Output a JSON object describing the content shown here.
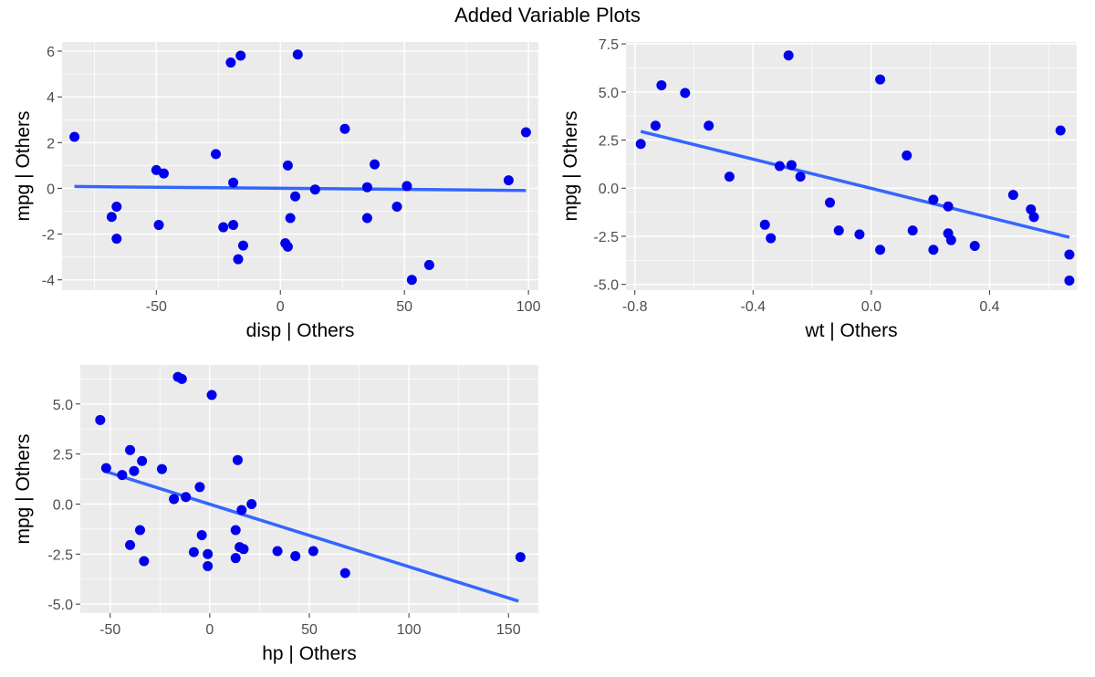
{
  "title": "Added Variable Plots",
  "colors": {
    "panel_bg": "#EBEBEB",
    "grid": "#FFFFFF",
    "point": "#0000EE",
    "line": "#3366FF",
    "tick_text": "#4D4D4D"
  },
  "chart_data": [
    {
      "type": "scatter",
      "xlabel": "disp  | Others",
      "ylabel": "mpg  | Others",
      "xlim": [
        -88,
        104
      ],
      "ylim": [
        -4.45,
        6.4
      ],
      "xticks": [
        -50,
        0,
        50,
        100
      ],
      "xtick_labels": [
        "-50",
        "0",
        "50",
        "100"
      ],
      "yticks": [
        -4,
        -2,
        0,
        2,
        4,
        6
      ],
      "ytick_labels": [
        "-4",
        "-2",
        "0",
        "2",
        "4",
        "6"
      ],
      "fit_line": {
        "x": [
          -83,
          99
        ],
        "y": [
          0.08,
          -0.09
        ]
      },
      "points": [
        [
          -83,
          2.25
        ],
        [
          -68,
          -1.25
        ],
        [
          -66,
          -0.8
        ],
        [
          -66,
          -2.2
        ],
        [
          -50,
          0.8
        ],
        [
          -49,
          -1.6
        ],
        [
          -47,
          0.65
        ],
        [
          -26,
          1.5
        ],
        [
          -23,
          -1.7
        ],
        [
          -20,
          5.5
        ],
        [
          -19,
          0.25
        ],
        [
          -19,
          -1.6
        ],
        [
          -17,
          -3.1
        ],
        [
          -16,
          5.8
        ],
        [
          -15,
          -2.5
        ],
        [
          2,
          -2.4
        ],
        [
          3,
          -2.55
        ],
        [
          3,
          1.0
        ],
        [
          4,
          -1.3
        ],
        [
          6,
          -0.35
        ],
        [
          7,
          5.85
        ],
        [
          14,
          -0.05
        ],
        [
          26,
          2.6
        ],
        [
          35,
          -1.3
        ],
        [
          35,
          0.05
        ],
        [
          38,
          1.05
        ],
        [
          47,
          -0.8
        ],
        [
          51,
          0.1
        ],
        [
          53,
          -4.0
        ],
        [
          60,
          -3.35
        ],
        [
          92,
          0.35
        ],
        [
          99,
          2.45
        ]
      ]
    },
    {
      "type": "scatter",
      "xlabel": "wt  | Others",
      "ylabel": "mpg  | Others",
      "xlim": [
        -0.83,
        0.695
      ],
      "ylim": [
        -5.3,
        7.6
      ],
      "xticks": [
        -0.8,
        -0.4,
        0.0,
        0.4
      ],
      "xtick_labels": [
        "-0.8",
        "-0.4",
        "0.0",
        "0.4"
      ],
      "yticks": [
        -5.0,
        -2.5,
        0.0,
        2.5,
        5.0,
        7.5
      ],
      "ytick_labels": [
        "-5.0",
        "-2.5",
        "0.0",
        "2.5",
        "5.0",
        "7.5"
      ],
      "fit_line": {
        "x": [
          -0.78,
          0.67
        ],
        "y": [
          2.95,
          -2.55
        ]
      },
      "points": [
        [
          -0.78,
          2.3
        ],
        [
          -0.73,
          3.25
        ],
        [
          -0.71,
          5.35
        ],
        [
          -0.63,
          4.95
        ],
        [
          -0.55,
          3.25
        ],
        [
          -0.48,
          0.6
        ],
        [
          -0.36,
          -1.9
        ],
        [
          -0.34,
          -2.6
        ],
        [
          -0.31,
          1.15
        ],
        [
          -0.28,
          6.9
        ],
        [
          -0.27,
          1.2
        ],
        [
          -0.24,
          0.6
        ],
        [
          -0.14,
          -0.75
        ],
        [
          -0.11,
          -2.2
        ],
        [
          -0.04,
          -2.4
        ],
        [
          0.03,
          -3.2
        ],
        [
          0.03,
          5.65
        ],
        [
          0.12,
          1.7
        ],
        [
          0.14,
          -2.2
        ],
        [
          0.21,
          -3.2
        ],
        [
          0.21,
          -0.6
        ],
        [
          0.26,
          -2.35
        ],
        [
          0.26,
          -0.95
        ],
        [
          0.27,
          -2.7
        ],
        [
          0.35,
          -3.0
        ],
        [
          0.48,
          -0.35
        ],
        [
          0.54,
          -1.1
        ],
        [
          0.55,
          -1.5
        ],
        [
          0.64,
          3.0
        ],
        [
          0.67,
          -3.45
        ],
        [
          0.67,
          -4.8
        ]
      ]
    },
    {
      "type": "scatter",
      "xlabel": "hp  | Others",
      "ylabel": "mpg  | Others",
      "xlim": [
        -65,
        165
      ],
      "ylim": [
        -5.45,
        6.95
      ],
      "xticks": [
        -50,
        0,
        50,
        100,
        150
      ],
      "xtick_labels": [
        "-50",
        "0",
        "50",
        "100",
        "150"
      ],
      "yticks": [
        -5.0,
        -2.5,
        0.0,
        2.5,
        5.0
      ],
      "ytick_labels": [
        "-5.0",
        "-2.5",
        "0.0",
        "2.5",
        "5.0"
      ],
      "fit_line": {
        "x": [
          -53,
          155
        ],
        "y": [
          1.65,
          -4.85
        ]
      },
      "points": [
        [
          -55,
          4.2
        ],
        [
          -52,
          1.8
        ],
        [
          -44,
          1.45
        ],
        [
          -40,
          2.7
        ],
        [
          -40,
          -2.05
        ],
        [
          -38,
          1.65
        ],
        [
          -35,
          -1.3
        ],
        [
          -34,
          2.15
        ],
        [
          -33,
          -2.85
        ],
        [
          -24,
          1.75
        ],
        [
          -18,
          0.25
        ],
        [
          -16,
          6.35
        ],
        [
          -14,
          6.25
        ],
        [
          -12,
          0.35
        ],
        [
          -8,
          -2.4
        ],
        [
          -5,
          0.85
        ],
        [
          -4,
          -1.55
        ],
        [
          -1,
          -2.5
        ],
        [
          -1,
          -3.1
        ],
        [
          1,
          5.45
        ],
        [
          13,
          -1.3
        ],
        [
          13,
          -2.7
        ],
        [
          14,
          2.2
        ],
        [
          15,
          -2.15
        ],
        [
          16,
          -0.3
        ],
        [
          17,
          -2.25
        ],
        [
          21,
          0.0
        ],
        [
          34,
          -2.35
        ],
        [
          43,
          -2.6
        ],
        [
          52,
          -2.35
        ],
        [
          68,
          -3.45
        ],
        [
          156,
          -2.65
        ]
      ]
    }
  ]
}
